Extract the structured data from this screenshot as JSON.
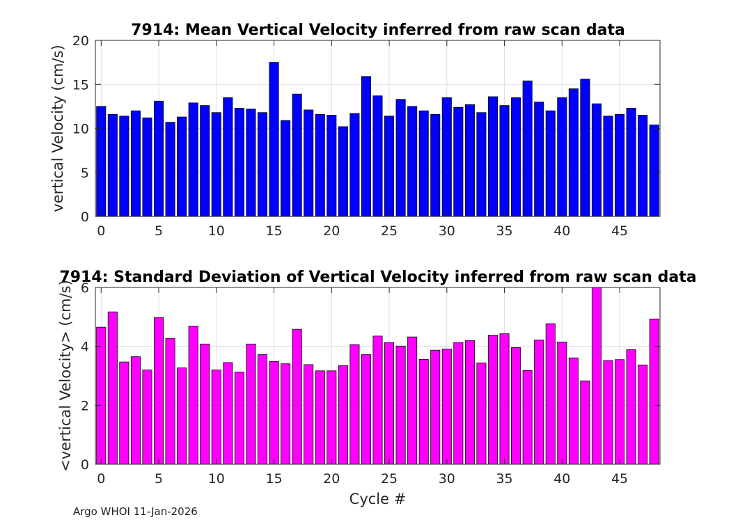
{
  "chart_data": [
    {
      "type": "bar",
      "title": "7914: Mean Vertical Velocity inferred from raw scan data",
      "xlabel": "",
      "ylabel": "vertical Velocity (cm/s)",
      "xlim": [
        -0.5,
        48.5
      ],
      "ylim": [
        0,
        20
      ],
      "xticks": [
        0,
        5,
        10,
        15,
        20,
        25,
        30,
        35,
        40,
        45
      ],
      "yticks": [
        0,
        5,
        10,
        15,
        20
      ],
      "grid": true,
      "color": "#0000ff",
      "categories": [
        0,
        1,
        2,
        3,
        4,
        5,
        6,
        7,
        8,
        9,
        10,
        11,
        12,
        13,
        14,
        15,
        16,
        17,
        18,
        19,
        20,
        21,
        22,
        23,
        24,
        25,
        26,
        27,
        28,
        29,
        30,
        31,
        32,
        33,
        34,
        35,
        36,
        37,
        38,
        39,
        40,
        41,
        42,
        43,
        44,
        45,
        46,
        47,
        48
      ],
      "values": [
        12.5,
        11.6,
        11.4,
        12.0,
        11.2,
        13.1,
        10.7,
        11.3,
        12.9,
        12.6,
        11.8,
        13.5,
        12.3,
        12.2,
        11.8,
        17.5,
        10.9,
        13.9,
        12.1,
        11.6,
        11.5,
        10.2,
        11.7,
        15.9,
        13.7,
        11.4,
        13.3,
        12.5,
        12.0,
        11.6,
        13.5,
        12.4,
        12.7,
        11.8,
        13.6,
        12.6,
        13.5,
        15.4,
        13.0,
        12.0,
        13.5,
        14.5,
        15.6,
        12.8,
        11.4,
        11.6,
        12.3,
        11.5,
        10.4
      ]
    },
    {
      "type": "bar",
      "title": "7914: Standard Deviation of Vertical Velocity inferred from raw scan data",
      "xlabel": "Cycle #",
      "ylabel": "<vertical Velocity> (cm/s)",
      "xlim": [
        -0.5,
        48.5
      ],
      "ylim": [
        0,
        6
      ],
      "xticks": [
        0,
        5,
        10,
        15,
        20,
        25,
        30,
        35,
        40,
        45
      ],
      "yticks": [
        0,
        2,
        4,
        6
      ],
      "grid": true,
      "color": "#ff00ff",
      "categories": [
        0,
        1,
        2,
        3,
        4,
        5,
        6,
        7,
        8,
        9,
        10,
        11,
        12,
        13,
        14,
        15,
        16,
        17,
        18,
        19,
        20,
        21,
        22,
        23,
        24,
        25,
        26,
        27,
        28,
        29,
        30,
        31,
        32,
        33,
        34,
        35,
        36,
        37,
        38,
        39,
        40,
        41,
        42,
        43,
        44,
        45,
        46,
        47,
        48
      ],
      "values": [
        4.65,
        5.17,
        3.47,
        3.65,
        3.2,
        4.98,
        4.27,
        3.27,
        4.69,
        4.08,
        3.2,
        3.45,
        3.13,
        4.08,
        3.72,
        3.49,
        3.41,
        4.58,
        3.38,
        3.17,
        3.17,
        3.35,
        4.06,
        3.72,
        4.35,
        4.13,
        4.01,
        4.32,
        3.56,
        3.87,
        3.91,
        4.13,
        4.2,
        3.44,
        4.38,
        4.43,
        3.96,
        3.18,
        4.22,
        4.77,
        4.15,
        3.61,
        2.83,
        6.0,
        3.52,
        3.55,
        3.89,
        3.37,
        4.93
      ]
    }
  ],
  "footer": "Argo WHOI 11-Jan-2026"
}
